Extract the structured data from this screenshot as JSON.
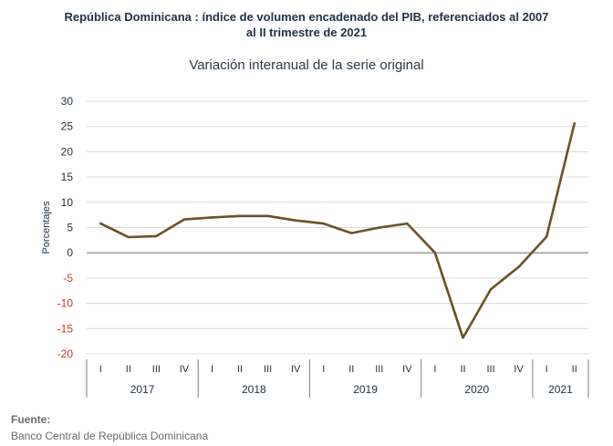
{
  "title_line1": "República Dominicana : índice de volumen encadenado del PIB, referenciados al 2007",
  "title_line2": "al II trimestre de 2021",
  "subtitle": "Variación interanual de la serie original",
  "source_label": "Fuente:",
  "source_text": "Banco Central de República Dominicana",
  "colors": {
    "line": "#6b5225",
    "positive_tick": "#1f2d3d",
    "negative_tick": "#c0392b",
    "grid": "#d9d9d9"
  },
  "chart_data": {
    "type": "line",
    "title": "Variación interanual de la serie original",
    "ylabel": "Porcentajes",
    "ylim": [
      -20,
      30
    ],
    "yticks": [
      30,
      25,
      20,
      15,
      10,
      5,
      0,
      -5,
      -10,
      -15,
      -20
    ],
    "grid": true,
    "quarters": [
      "I",
      "II",
      "III",
      "IV",
      "I",
      "II",
      "III",
      "IV",
      "I",
      "II",
      "III",
      "IV",
      "I",
      "II",
      "III",
      "IV",
      "I",
      "II"
    ],
    "years": [
      {
        "label": "2017",
        "count": 4
      },
      {
        "label": "2018",
        "count": 4
      },
      {
        "label": "2019",
        "count": 4
      },
      {
        "label": "2020",
        "count": 4
      },
      {
        "label": "2021",
        "count": 2
      }
    ],
    "series": [
      {
        "values": [
          5.8,
          3.1,
          3.3,
          6.6,
          7.0,
          7.3,
          7.3,
          6.4,
          5.8,
          3.9,
          5.0,
          5.8,
          0.0,
          -16.8,
          -7.2,
          -2.8,
          3.2,
          25.6
        ]
      }
    ]
  }
}
